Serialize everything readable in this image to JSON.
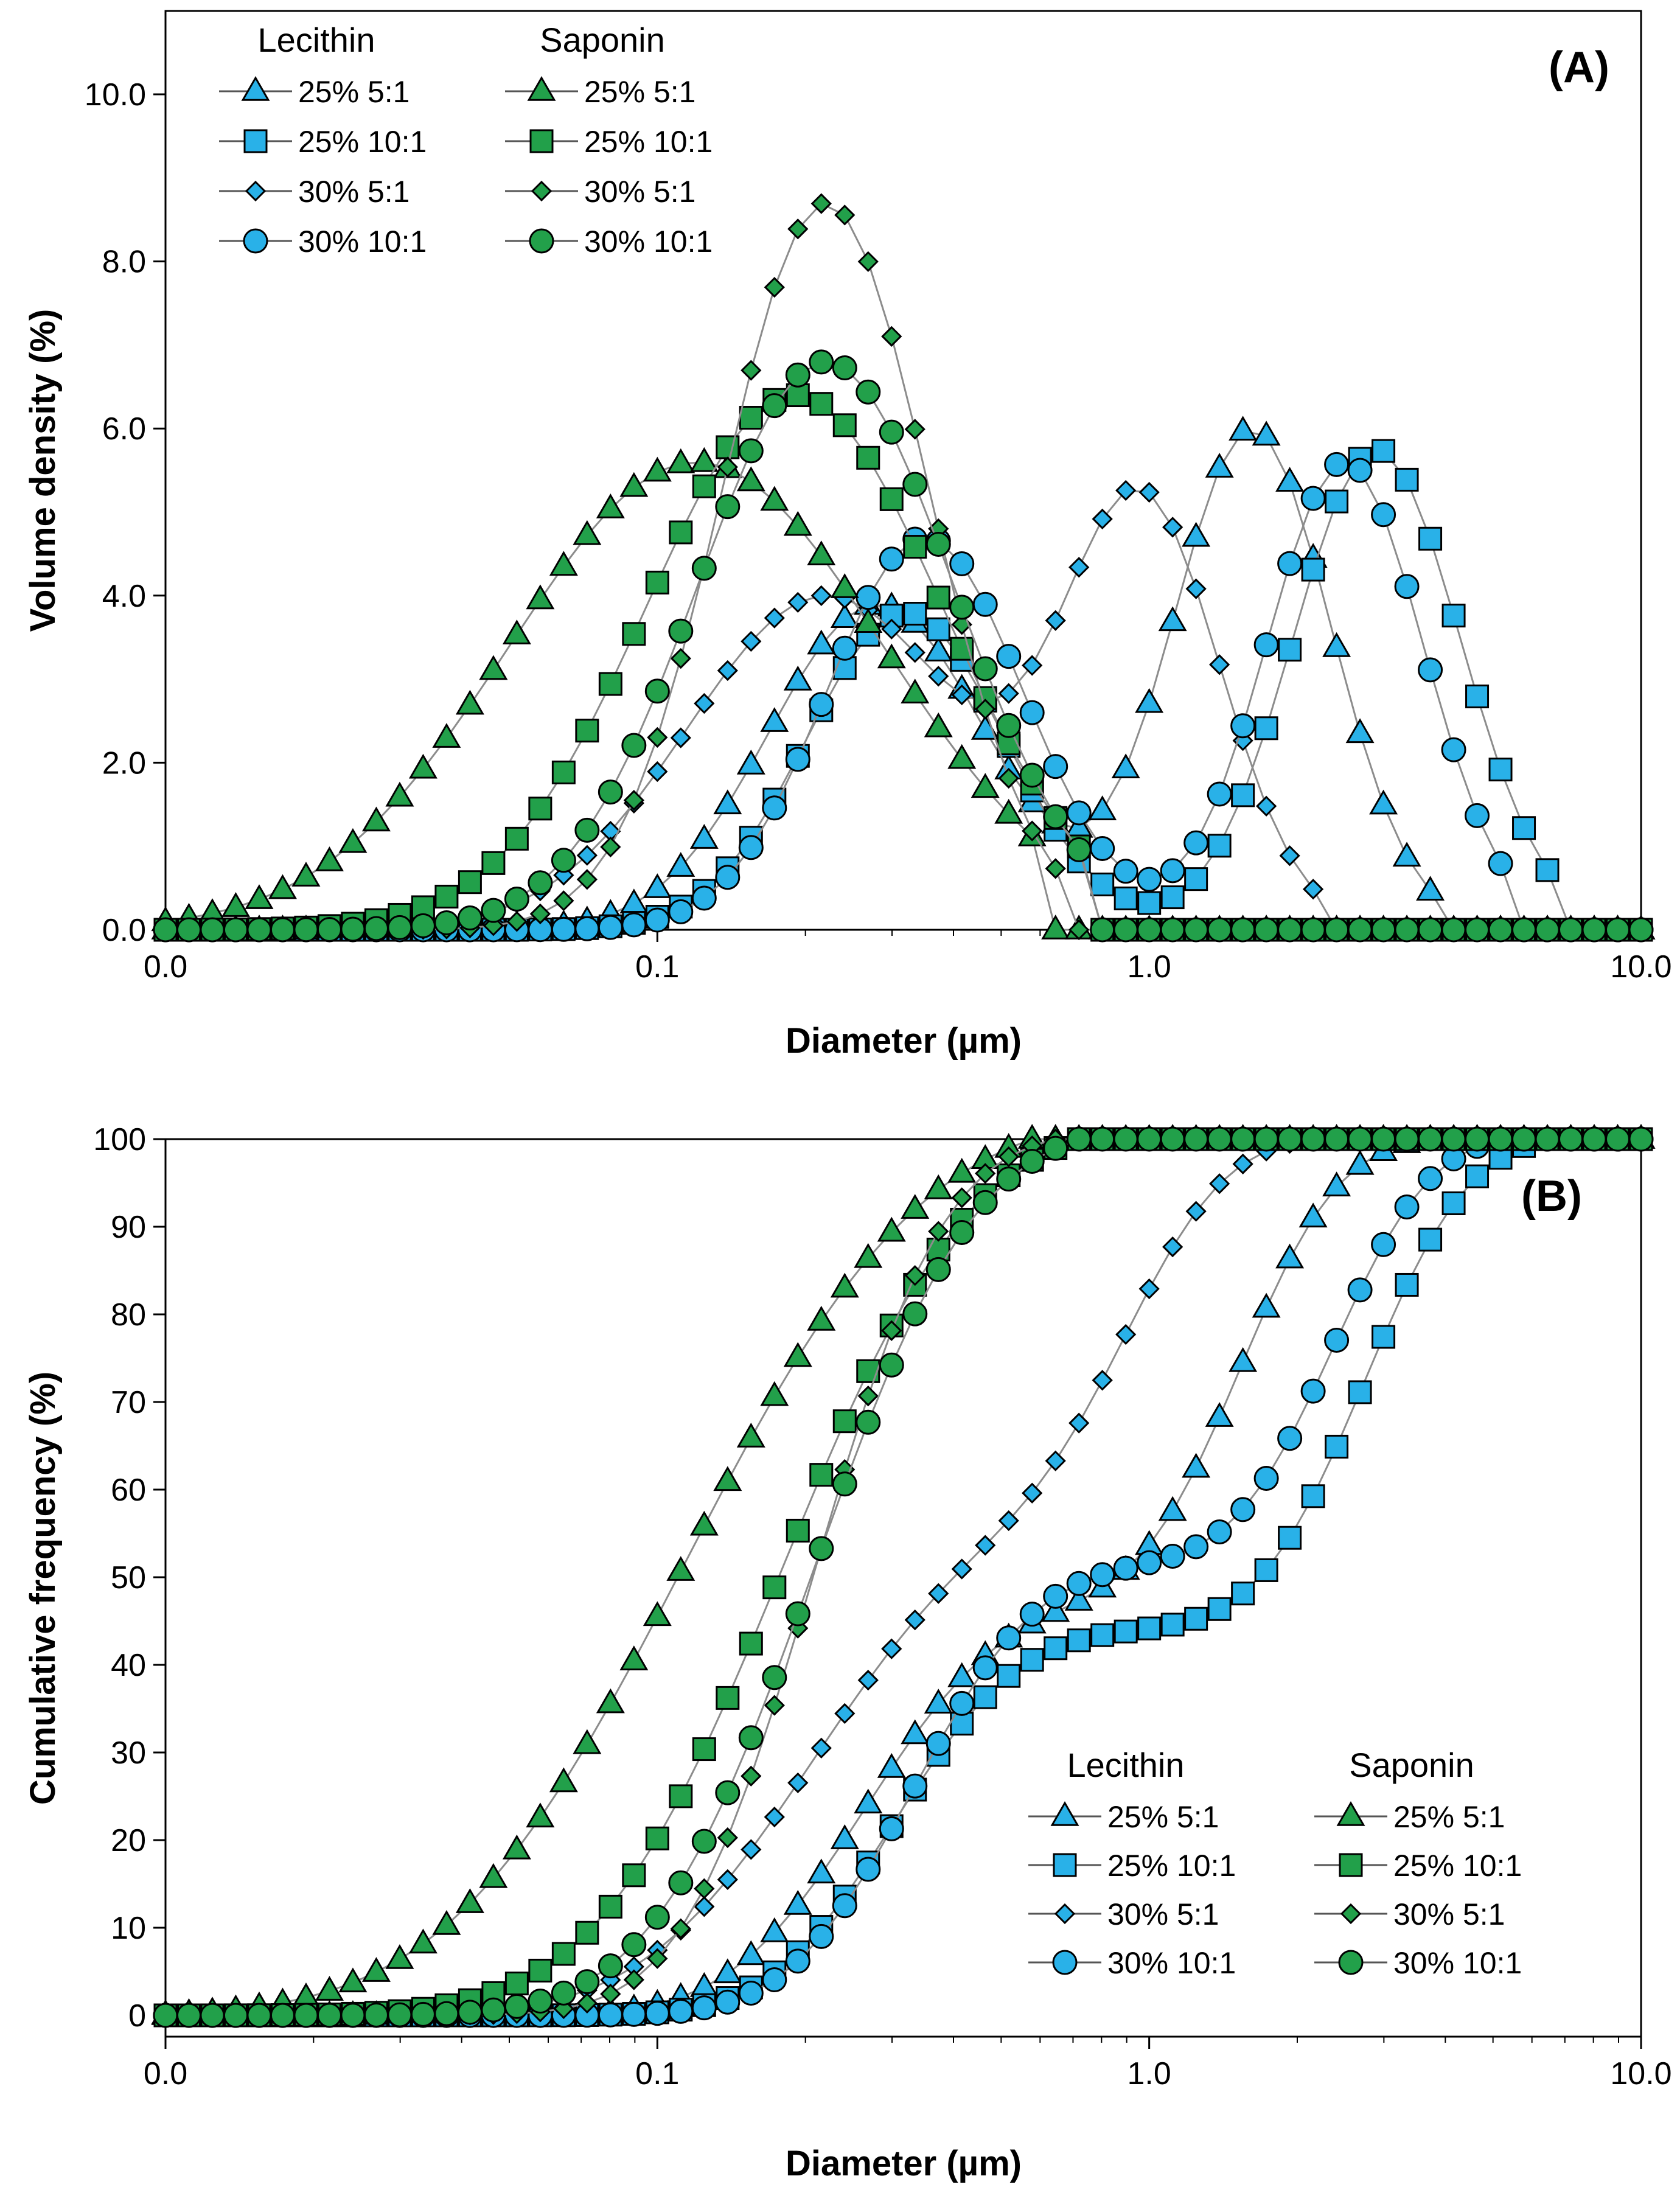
{
  "colors": {
    "lecithin_fill": "#29B1E8",
    "saponin_fill": "#22A04A",
    "marker_stroke": "#000000",
    "line": "#8C8C8C",
    "axis": "#000000"
  },
  "chart_data": [
    {
      "type": "line",
      "panel_label": "(A)",
      "x_scale": "log",
      "xlim": [
        0.01,
        10.0
      ],
      "ylim": [
        0,
        10.5
      ],
      "xlabel": "Diameter (µm)",
      "ylabel": "Volume density (%)",
      "xticks": [
        0.01,
        0.1,
        1.0,
        10.0
      ],
      "xtick_labels": [
        "0.0",
        "0.1",
        "1.0",
        "10.0"
      ],
      "yticks": [
        0,
        2,
        4,
        6,
        8,
        10
      ],
      "ytick_labels": [
        "0.0",
        "2.0",
        "4.0",
        "6.0",
        "8.0",
        "10.0"
      ],
      "legend": {
        "position": "top-left",
        "group_titles": [
          "Lecithin",
          "Saponin"
        ],
        "entries": [
          "25% 5:1",
          "25% 10:1",
          "30% 5:1",
          "30% 10:1"
        ]
      },
      "series": [
        {
          "name": "Lecithin 25% 5:1",
          "group": "lecithin",
          "marker": "triangle",
          "peaks": [
            [
              0.28,
              3.9,
              0.22
            ],
            [
              1.62,
              6.0,
              0.16
            ]
          ],
          "xrange": [
            0.035,
            4.0
          ]
        },
        {
          "name": "Lecithin 25% 10:1",
          "group": "lecithin",
          "marker": "square",
          "peaks": [
            [
              0.32,
              3.8,
              0.2
            ],
            [
              2.9,
              5.75,
              0.17
            ]
          ],
          "xrange": [
            0.055,
            6.6
          ]
        },
        {
          "name": "Lecithin 30% 5:1",
          "group": "lecithin",
          "marker": "diamond",
          "peaks": [
            [
              0.22,
              4.0,
              0.28
            ],
            [
              0.97,
              5.0,
              0.16
            ]
          ],
          "xrange": [
            0.025,
            2.4
          ]
        },
        {
          "name": "Lecithin 30% 10:1",
          "group": "lecithin",
          "marker": "circle",
          "peaks": [
            [
              0.35,
              4.7,
              0.2
            ],
            [
              2.5,
              5.6,
              0.16
            ]
          ],
          "xrange": [
            0.05,
            5.3
          ]
        },
        {
          "name": "Saponin 25% 5:1",
          "group": "saponin",
          "marker": "triangle",
          "peaks": [
            [
              0.12,
              5.6,
              0.38
            ]
          ],
          "xrange": [
            0.01,
            0.62
          ]
        },
        {
          "name": "Saponin 25% 10:1",
          "group": "saponin",
          "marker": "square",
          "peaks": [
            [
              0.19,
              6.4,
              0.3
            ]
          ],
          "xrange": [
            0.012,
            0.75
          ]
        },
        {
          "name": "Saponin 30% 5:1",
          "group": "saponin",
          "marker": "diamond",
          "peaks": [
            [
              0.22,
              8.7,
              0.21
            ]
          ],
          "xrange": [
            0.015,
            0.68
          ]
        },
        {
          "name": "Saponin 30% 10:1",
          "group": "saponin",
          "marker": "circle",
          "peaks": [
            [
              0.22,
              6.8,
              0.26
            ]
          ],
          "xrange": [
            0.015,
            0.8
          ]
        }
      ]
    },
    {
      "type": "line",
      "panel_label": "(B)",
      "x_scale": "log",
      "xlim": [
        0.01,
        10.0
      ],
      "ylim": [
        0,
        100
      ],
      "xlabel": "Diameter (µm)",
      "ylabel": "Cumulative frequency (%)",
      "xticks": [
        0.01,
        0.1,
        1.0,
        10.0
      ],
      "xtick_labels": [
        "0.0",
        "0.1",
        "1.0",
        "10.0"
      ],
      "yticks": [
        0,
        10,
        20,
        30,
        40,
        50,
        60,
        70,
        80,
        90,
        100
      ],
      "ytick_labels": [
        "0",
        "10",
        "20",
        "30",
        "40",
        "50",
        "60",
        "70",
        "80",
        "90",
        "100"
      ],
      "legend": {
        "position": "bottom-right",
        "group_titles": [
          "Lecithin",
          "Saponin"
        ],
        "entries": [
          "25% 5:1",
          "25% 10:1",
          "30% 5:1",
          "30% 10:1"
        ]
      },
      "series_source": "cumulative of panel (A) series",
      "series": [
        {
          "name": "Lecithin 25% 5:1",
          "group": "lecithin",
          "marker": "triangle"
        },
        {
          "name": "Lecithin 25% 10:1",
          "group": "lecithin",
          "marker": "square"
        },
        {
          "name": "Lecithin 30% 5:1",
          "group": "lecithin",
          "marker": "diamond"
        },
        {
          "name": "Lecithin 30% 10:1",
          "group": "lecithin",
          "marker": "circle"
        },
        {
          "name": "Saponin 25% 5:1",
          "group": "saponin",
          "marker": "triangle"
        },
        {
          "name": "Saponin 25% 10:1",
          "group": "saponin",
          "marker": "square"
        },
        {
          "name": "Saponin 30% 5:1",
          "group": "saponin",
          "marker": "diamond"
        },
        {
          "name": "Saponin 30% 10:1",
          "group": "saponin",
          "marker": "circle"
        }
      ]
    }
  ]
}
